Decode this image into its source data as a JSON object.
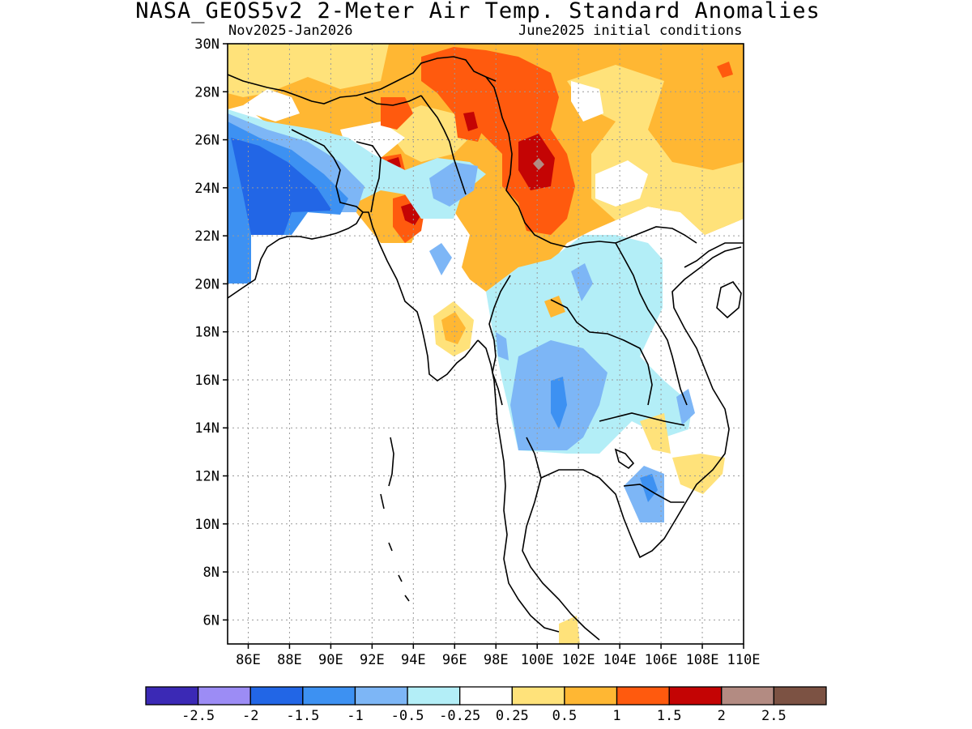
{
  "title": "NASA_GEOS5v2 2-Meter Air Temp. Standard Anomalies",
  "subtitle_left": "Nov2025-Jan2026",
  "subtitle_right": "June2025 initial conditions",
  "map": {
    "type": "filled-contour-map",
    "region": "Southeast Asia",
    "lon_range": [
      85,
      110
    ],
    "lat_range": [
      5,
      30
    ],
    "grid": true,
    "coastlines": true,
    "country_borders": true,
    "lat_ticks": [
      "30N",
      "28N",
      "26N",
      "24N",
      "22N",
      "20N",
      "18N",
      "16N",
      "14N",
      "12N",
      "10N",
      "8N",
      "6N"
    ],
    "lon_ticks": [
      "86E",
      "88E",
      "90E",
      "92E",
      "94E",
      "96E",
      "98E",
      "100E",
      "102E",
      "104E",
      "106E",
      "108E",
      "110E"
    ]
  },
  "colorbar": {
    "colors": [
      "#3b29b5",
      "#9c8cf5",
      "#2266e6",
      "#3d91f2",
      "#7db6f6",
      "#b3eef7",
      "#ffffff",
      "#ffe27a",
      "#ffb733",
      "#ff5a0e",
      "#c40404",
      "#b38b82",
      "#7c5243"
    ],
    "labels": [
      "-2.5",
      "-2",
      "-1.5",
      "-1",
      "-0.5",
      "-0.25",
      "0.25",
      "0.5",
      "1",
      "1.5",
      "2",
      "2.5"
    ]
  },
  "colors": {
    "neg_strong": "#2266e6",
    "neg_mid": "#3d91f2",
    "neg_light": "#7db6f6",
    "neg_faint": "#b3eef7",
    "pos_faint": "#ffe27a",
    "pos_light": "#ffb733",
    "pos_mid": "#ff5a0e",
    "pos_strong": "#c40404"
  }
}
